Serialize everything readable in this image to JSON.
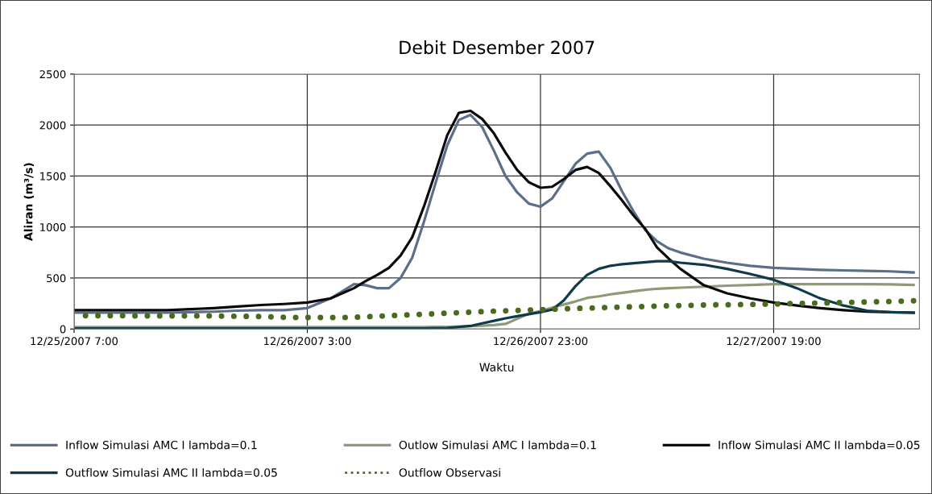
{
  "chart_data": {
    "type": "line",
    "title": "Debit Desember 2007",
    "xlabel": "Waktu",
    "ylabel": "Aliran (m³/s)",
    "x": [
      "2007-12-25T07:00",
      "2007-12-25T09:00",
      "2007-12-25T11:00",
      "2007-12-25T13:00",
      "2007-12-25T15:00",
      "2007-12-25T17:00",
      "2007-12-25T19:00",
      "2007-12-25T21:00",
      "2007-12-25T23:00",
      "2007-12-26T01:00",
      "2007-12-26T03:00",
      "2007-12-26T05:00",
      "2007-12-26T07:00",
      "2007-12-26T08:00",
      "2007-12-26T09:00",
      "2007-12-26T10:00",
      "2007-12-26T11:00",
      "2007-12-26T12:00",
      "2007-12-26T13:00",
      "2007-12-26T14:00",
      "2007-12-26T15:00",
      "2007-12-26T16:00",
      "2007-12-26T17:00",
      "2007-12-26T18:00",
      "2007-12-26T19:00",
      "2007-12-26T20:00",
      "2007-12-26T21:00",
      "2007-12-26T22:00",
      "2007-12-26T23:00",
      "2007-12-27T00:00",
      "2007-12-27T01:00",
      "2007-12-27T02:00",
      "2007-12-27T03:00",
      "2007-12-27T04:00",
      "2007-12-27T05:00",
      "2007-12-27T06:00",
      "2007-12-27T07:00",
      "2007-12-27T08:00",
      "2007-12-27T09:00",
      "2007-12-27T10:00",
      "2007-12-27T11:00",
      "2007-12-27T13:00",
      "2007-12-27T15:00",
      "2007-12-27T17:00",
      "2007-12-27T19:00",
      "2007-12-27T21:00",
      "2007-12-27T23:00",
      "2007-12-28T01:00",
      "2007-12-28T03:00",
      "2007-12-28T05:00",
      "2007-12-28T07:00"
    ],
    "series": [
      {
        "name": "Inflow Simulasi AMC I lambda=0.1",
        "color": "#5b6e8a",
        "values": [
          160,
          160,
          160,
          160,
          160,
          165,
          170,
          180,
          185,
          185,
          205,
          300,
          440,
          430,
          400,
          400,
          500,
          700,
          1050,
          1430,
          1800,
          2050,
          2100,
          1980,
          1750,
          1500,
          1340,
          1230,
          1200,
          1280,
          1450,
          1620,
          1720,
          1740,
          1580,
          1350,
          1150,
          970,
          860,
          790,
          750,
          690,
          650,
          620,
          600,
          590,
          580,
          575,
          570,
          565,
          555
        ]
      },
      {
        "name": "Outlow Simulasi AMC I lambda=0.1",
        "color": "#8f9a78",
        "values": [
          20,
          20,
          20,
          20,
          20,
          20,
          20,
          20,
          20,
          20,
          20,
          20,
          20,
          20,
          20,
          20,
          20,
          20,
          20,
          22,
          22,
          25,
          28,
          32,
          38,
          50,
          100,
          150,
          175,
          210,
          240,
          270,
          305,
          320,
          340,
          355,
          370,
          385,
          395,
          400,
          405,
          415,
          425,
          432,
          440,
          440,
          440,
          440,
          440,
          438,
          432
        ]
      },
      {
        "name": "Inflow Simulasi AMC II lambda=0.05",
        "color": "#0a0a0a",
        "values": [
          185,
          185,
          185,
          185,
          185,
          195,
          205,
          220,
          235,
          245,
          260,
          300,
          400,
          470,
          530,
          600,
          720,
          900,
          1200,
          1540,
          1900,
          2120,
          2140,
          2060,
          1920,
          1730,
          1560,
          1440,
          1385,
          1395,
          1470,
          1560,
          1590,
          1530,
          1400,
          1260,
          1110,
          980,
          800,
          690,
          590,
          430,
          350,
          300,
          260,
          230,
          205,
          185,
          170,
          165,
          160
        ]
      },
      {
        "name": "Outflow Simulasi AMC II lambda=0.05",
        "color": "#0e3a4a",
        "values": [
          5,
          5,
          5,
          5,
          5,
          5,
          5,
          5,
          5,
          5,
          5,
          5,
          5,
          5,
          5,
          5,
          5,
          5,
          5,
          8,
          10,
          20,
          30,
          55,
          80,
          105,
          125,
          145,
          165,
          190,
          280,
          420,
          530,
          590,
          620,
          635,
          645,
          655,
          665,
          665,
          650,
          630,
          590,
          540,
          483,
          400,
          300,
          230,
          180,
          165,
          160
        ]
      },
      {
        "name": "Outflow Observasi",
        "color": "#4a6a1f",
        "line_style": "dotted",
        "values": [
          130,
          130,
          130,
          128,
          128,
          128,
          128,
          125,
          122,
          115,
          112,
          112,
          115,
          120,
          125,
          130,
          135,
          140,
          145,
          150,
          155,
          160,
          165,
          170,
          175,
          178,
          182,
          186,
          190,
          194,
          198,
          202,
          205,
          208,
          212,
          215,
          218,
          221,
          225,
          228,
          230,
          235,
          238,
          242,
          245,
          250,
          255,
          260,
          265,
          270,
          277
        ]
      }
    ],
    "xlim": [
      "2007-12-25T07:00",
      "2007-12-28T07:30"
    ],
    "xticks": [
      {
        "value": "2007-12-25T07:00",
        "label": "12/25/2007 7:00"
      },
      {
        "value": "2007-12-26T03:00",
        "label": "12/26/2007 3:00"
      },
      {
        "value": "2007-12-26T23:00",
        "label": "12/26/2007 23:00"
      },
      {
        "value": "2007-12-27T19:00",
        "label": "12/27/2007 19:00"
      }
    ],
    "ylim": [
      0,
      2500
    ],
    "yticks": [
      0,
      500,
      1000,
      1500,
      2000,
      2500
    ],
    "grid": true,
    "legend": "bottom",
    "line_style": "solid",
    "marker": "none"
  }
}
